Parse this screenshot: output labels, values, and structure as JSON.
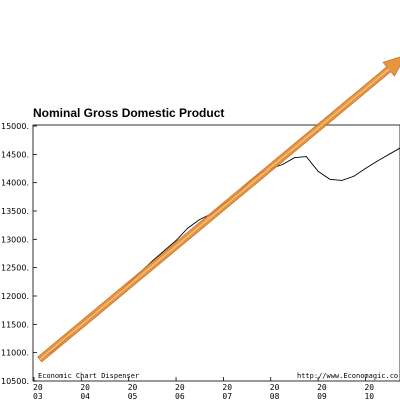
{
  "chart_data": {
    "type": "line",
    "title": "Nominal Gross Domestic Product",
    "xlabel": "",
    "ylabel": "",
    "footer_left": "Economic Chart Dispenser",
    "footer_right": "http://www.Economagic.co",
    "ylim": [
      10500,
      15000
    ],
    "y_ticks": [
      "15000.",
      "14500.",
      "14000.",
      "13500.",
      "13000.",
      "12500.",
      "12000.",
      "11500.",
      "11000.",
      "10500."
    ],
    "x_ticks": [
      {
        "year": "20",
        "suffix": "03",
        "t": 2003.0
      },
      {
        "year": "20",
        "suffix": "04",
        "t": 2004.0
      },
      {
        "year": "20",
        "suffix": "05",
        "t": 2005.0
      },
      {
        "year": "20",
        "suffix": "06",
        "t": 2006.0
      },
      {
        "year": "20",
        "suffix": "07",
        "t": 2007.0
      },
      {
        "year": "20",
        "suffix": "08",
        "t": 2008.0
      },
      {
        "year": "20",
        "suffix": "09",
        "t": 2009.0
      },
      {
        "year": "20",
        "suffix": "10",
        "t": 2010.0
      }
    ],
    "grid": false,
    "series": [
      {
        "color": "#000000",
        "points": [
          [
            2003.12,
            10900
          ],
          [
            2003.4,
            11030
          ],
          [
            2003.75,
            11300
          ],
          [
            2004.0,
            11500
          ],
          [
            2004.25,
            11680
          ],
          [
            2004.5,
            11840
          ],
          [
            2004.75,
            12020
          ],
          [
            2005.0,
            12230
          ],
          [
            2005.25,
            12420
          ],
          [
            2005.5,
            12620
          ],
          [
            2005.75,
            12800
          ],
          [
            2006.0,
            12980
          ],
          [
            2006.25,
            13200
          ],
          [
            2006.5,
            13350
          ],
          [
            2006.75,
            13450
          ],
          [
            2007.0,
            13620
          ],
          [
            2007.25,
            13760
          ],
          [
            2007.5,
            13980
          ],
          [
            2007.75,
            14160
          ],
          [
            2008.0,
            14250
          ],
          [
            2008.25,
            14320
          ],
          [
            2008.5,
            14440
          ],
          [
            2008.75,
            14460
          ],
          [
            2009.0,
            14200
          ],
          [
            2009.25,
            14060
          ],
          [
            2009.5,
            14040
          ],
          [
            2009.75,
            14110
          ],
          [
            2010.0,
            14250
          ],
          [
            2010.25,
            14380
          ],
          [
            2010.5,
            14500
          ],
          [
            2010.75,
            14620
          ]
        ]
      }
    ],
    "trend_arrow": {
      "color": "#e58a2a",
      "start": [
        2003.12,
        10880
      ],
      "end": [
        2010.85,
        16250
      ]
    }
  }
}
